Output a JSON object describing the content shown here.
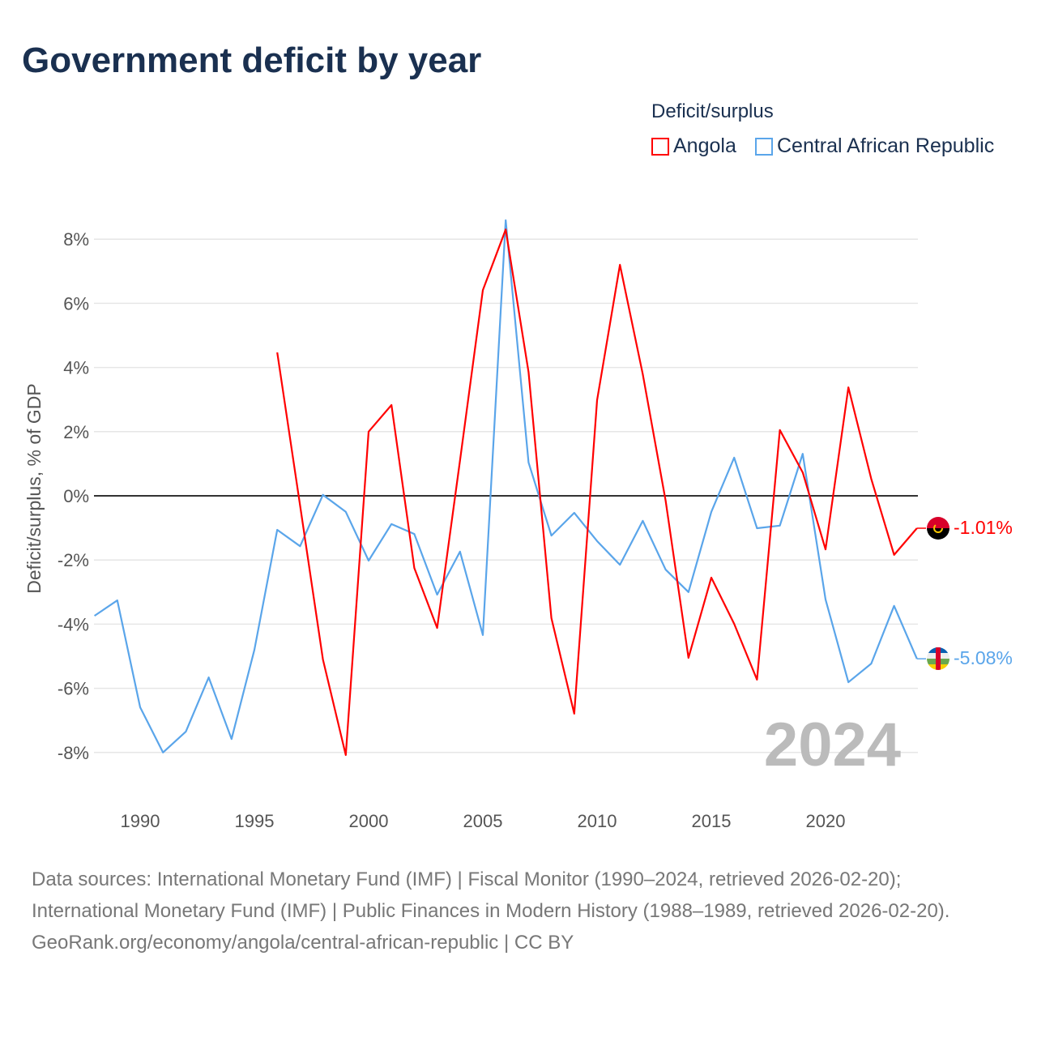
{
  "title": "Government deficit by year",
  "legend": {
    "title": "Deficit/surplus",
    "items": [
      "Angola",
      "Central African Republic"
    ]
  },
  "year_watermark": "2024",
  "end_labels": {
    "angola": "-1.01%",
    "car": "-5.08%"
  },
  "footer": {
    "sources": "Data sources: International Monetary Fund (IMF) | Fiscal Monitor (1990–2024, retrieved 2026-02-20); International Monetary Fund (IMF) | Public Finances in Modern History (1988–1989, retrieved 2026-02-20).",
    "credit": "GeoRank.org/economy/angola/central-african-republic | CC BY"
  },
  "chart_data": {
    "type": "line",
    "title": "Government deficit by year",
    "xlabel": "",
    "ylabel": "Deficit/surplus, % of GDP",
    "xlim": [
      1988,
      2024
    ],
    "ylim": [
      -9,
      9
    ],
    "x_ticks": [
      1990,
      1995,
      2000,
      2005,
      2010,
      2015,
      2020
    ],
    "x_tick_labels": [
      "1990",
      "1995",
      "2000",
      "2005",
      "2010",
      "2015",
      "2020"
    ],
    "y_ticks": [
      -8,
      -6,
      -4,
      -2,
      0,
      2,
      4,
      6,
      8
    ],
    "y_tick_labels": [
      "-8%",
      "-6%",
      "-4%",
      "-2%",
      "0%",
      "2%",
      "4%",
      "6%",
      "8%"
    ],
    "grid": true,
    "legend_position": "top-right",
    "series": [
      {
        "name": "Angola",
        "color": "#ff0000",
        "x": [
          1996,
          1997,
          1998,
          1999,
          2000,
          2001,
          2002,
          2003,
          2004,
          2005,
          2006,
          2007,
          2008,
          2009,
          2010,
          2011,
          2012,
          2013,
          2014,
          2015,
          2016,
          2017,
          2018,
          2019,
          2020,
          2021,
          2022,
          2023,
          2024
        ],
        "values": [
          4.47,
          -0.3,
          -5.1,
          -8.08,
          2.0,
          2.83,
          -2.25,
          -4.12,
          1.1,
          6.41,
          8.3,
          3.86,
          -3.81,
          -6.79,
          2.98,
          7.2,
          3.79,
          -0.15,
          -5.05,
          -2.55,
          -3.99,
          -5.73,
          2.05,
          0.73,
          -1.67,
          3.38,
          0.53,
          -1.84,
          -1.01
        ]
      },
      {
        "name": "Central African Republic",
        "color": "#5aa5ea",
        "x": [
          1988,
          1989,
          1990,
          1991,
          1992,
          1993,
          1994,
          1995,
          1996,
          1997,
          1998,
          1999,
          2000,
          2001,
          2002,
          2003,
          2004,
          2005,
          2006,
          2007,
          2008,
          2009,
          2010,
          2011,
          2012,
          2013,
          2014,
          2015,
          2016,
          2017,
          2018,
          2019,
          2020,
          2021,
          2022,
          2023,
          2024
        ],
        "values": [
          -3.74,
          -3.26,
          -6.59,
          -8.0,
          -7.35,
          -5.66,
          -7.58,
          -4.8,
          -1.06,
          -1.57,
          0.03,
          -0.5,
          -2.02,
          -0.88,
          -1.19,
          -3.08,
          -1.74,
          -4.34,
          8.59,
          1.04,
          -1.24,
          -0.53,
          -1.41,
          -2.15,
          -0.78,
          -2.3,
          -3.0,
          -0.5,
          1.19,
          -1.01,
          -0.93,
          1.31,
          -3.23,
          -5.81,
          -5.23,
          -3.43,
          -5.08
        ]
      }
    ]
  }
}
